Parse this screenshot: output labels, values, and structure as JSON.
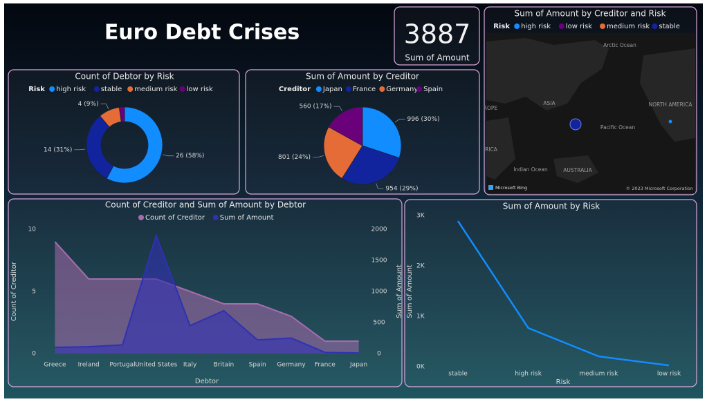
{
  "header": {
    "title": "Euro Debt Crises"
  },
  "kpi": {
    "value": 3887,
    "label": "Sum of Amount"
  },
  "chart_data": [
    {
      "type": "donut",
      "title": "Count of Debtor by Risk",
      "legend_title": "Risk",
      "categories": [
        "high risk",
        "stable",
        "medium risk",
        "low risk"
      ],
      "values": [
        26,
        14,
        4,
        1
      ],
      "value_labels": [
        "26 (58%)",
        "14 (31%)",
        "4 (9%)",
        null
      ],
      "colors": [
        "#118dff",
        "#12239e",
        "#e66c37",
        "#6b007b"
      ]
    },
    {
      "type": "pie",
      "title": "Sum of Amount by Creditor",
      "legend_title": "Creditor",
      "categories": [
        "Japan",
        "France",
        "Germany",
        "Spain"
      ],
      "values": [
        996,
        954,
        801,
        560
      ],
      "value_labels": [
        "996 (30%)",
        "954 (29%)",
        "801 (24%)",
        "560 (17%)"
      ],
      "colors": [
        "#118dff",
        "#12239e",
        "#e66c37",
        "#6b007b"
      ]
    },
    {
      "type": "map",
      "title": "Sum of Amount by Creditor and Risk",
      "legend_title": "Risk",
      "legend": [
        {
          "name": "high risk",
          "color": "#118dff"
        },
        {
          "name": "low risk",
          "color": "#6b007b"
        },
        {
          "name": "medium risk",
          "color": "#e66c37"
        },
        {
          "name": "stable",
          "color": "#12239e"
        }
      ],
      "places": [
        "Arctic Ocean",
        "ASIA",
        "ROPE",
        "NORTH AMERICA",
        "Pacific Ocean",
        "RICA",
        "Indian Ocean",
        "AUSTRALIA"
      ],
      "attribution": [
        "Microsoft Bing",
        "© 2023 Microsoft Corporation"
      ]
    },
    {
      "type": "area",
      "title": "Count of Creditor and Sum of Amount by Debtor",
      "x_label": "Debtor",
      "y_label": "Count of Creditor",
      "y2_label": "Sum of Amount",
      "categories": [
        "Greece",
        "Ireland",
        "Portugal",
        "United States",
        "Italy",
        "Britain",
        "Spain",
        "Germany",
        "France",
        "Japan"
      ],
      "series": [
        {
          "name": "Count of Creditor",
          "color": "#a86cad",
          "values": [
            9,
            6,
            6,
            6,
            5,
            4,
            4,
            3,
            1,
            1
          ]
        },
        {
          "name": "Sum of Amount",
          "color": "#3030b4",
          "axis": "y2",
          "values": [
            100,
            110,
            140,
            1900,
            450,
            690,
            220,
            250,
            20,
            10
          ]
        }
      ],
      "ylim": [
        0,
        10
      ],
      "yticks": [
        0,
        5,
        10
      ],
      "y2lim": [
        0,
        2000
      ],
      "y2ticks": [
        0,
        500,
        1000,
        1500,
        2000
      ],
      "grid": false
    },
    {
      "type": "line",
      "title": "Sum of Amount by Risk",
      "x_label": "Risk",
      "y_label": "Sum of Amount",
      "categories": [
        "stable",
        "high risk",
        "medium risk",
        "low risk"
      ],
      "values": [
        2890,
        767,
        205,
        25
      ],
      "color": "#118dff",
      "ylim": [
        0,
        3000
      ],
      "yticks": [
        {
          "value": 0,
          "label": "0K"
        },
        {
          "value": 1000,
          "label": "1K"
        },
        {
          "value": 2000,
          "label": "2K"
        },
        {
          "value": 3000,
          "label": "3K"
        }
      ],
      "grid": false
    }
  ]
}
